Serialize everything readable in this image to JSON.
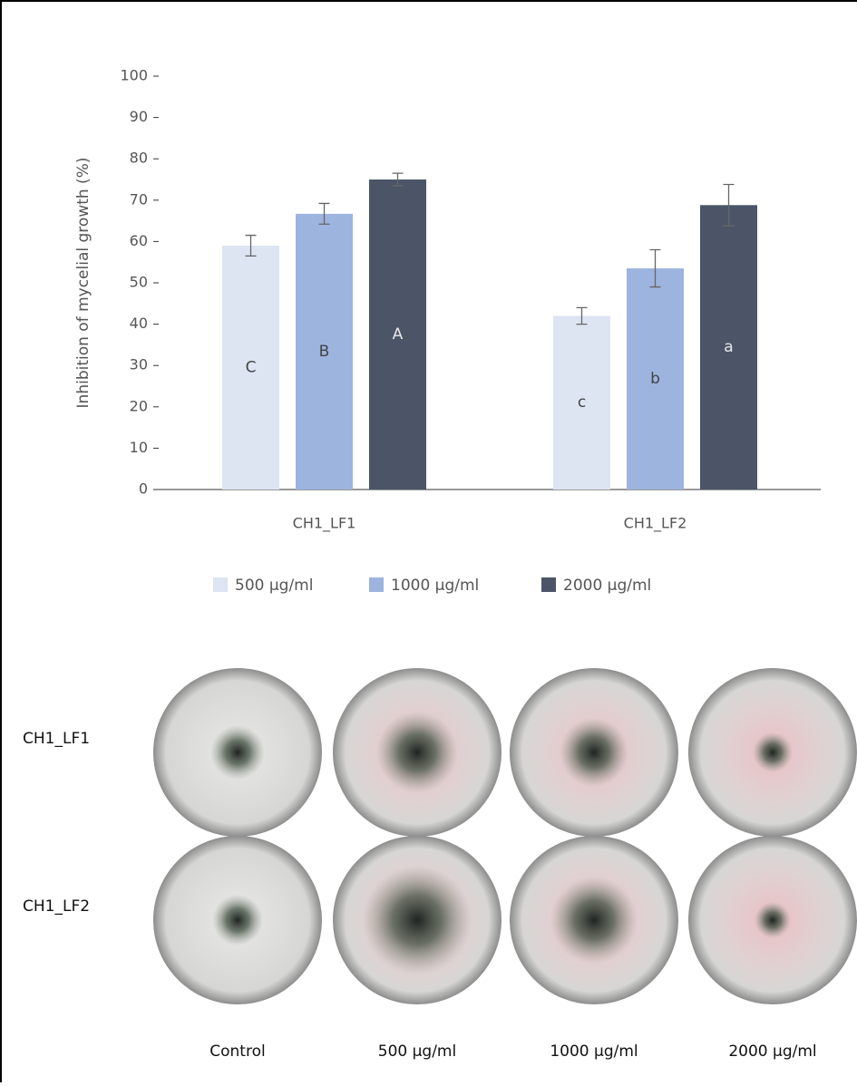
{
  "chart_data": {
    "type": "bar",
    "y_label": "Inhibition of mycelial growth (%)",
    "categories": [
      "CH1_LF1",
      "CH1_LF2"
    ],
    "series": [
      {
        "name": "500 μg/ml",
        "color": "#dde4f2",
        "values": [
          59,
          42
        ],
        "errors": [
          2.5,
          2
        ],
        "annotations": [
          "C",
          "c"
        ]
      },
      {
        "name": "1000 μg/ml",
        "color": "#9db4df",
        "values": [
          66.7,
          53.5
        ],
        "errors": [
          2.5,
          4.5
        ],
        "annotations": [
          "B",
          "b"
        ]
      },
      {
        "name": "2000 μg/ml",
        "color": "#4b5567",
        "values": [
          75,
          68.8
        ],
        "errors": [
          1.5,
          5
        ],
        "annotations": [
          "A",
          "a"
        ]
      }
    ],
    "ylim": [
      0,
      100
    ],
    "yticks": [
      0,
      10,
      20,
      30,
      40,
      50,
      60,
      70,
      80,
      90,
      100
    ],
    "grid": false,
    "legend": "bottom"
  },
  "plates": {
    "rows": [
      "CH1_LF1",
      "CH1_LF2"
    ],
    "columns": [
      "Control",
      "500 μg/ml",
      "1000 μg/ml",
      "2000 μg/ml"
    ]
  }
}
